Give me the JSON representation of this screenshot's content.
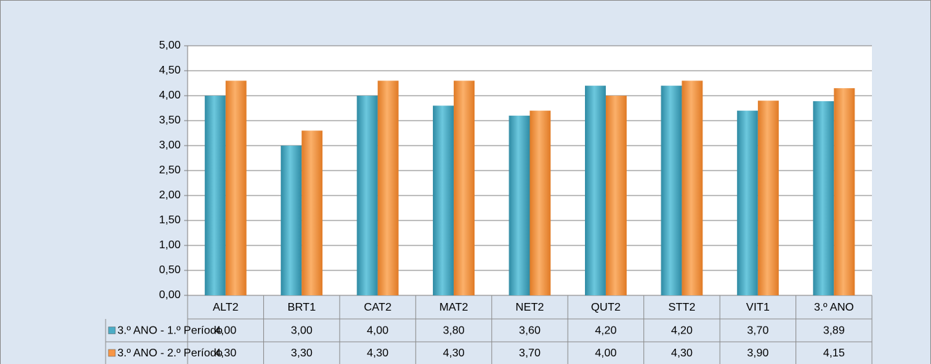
{
  "chart_data": {
    "type": "bar",
    "categories": [
      "ALT2",
      "BRT1",
      "CAT2",
      "MAT2",
      "NET2",
      "QUT2",
      "STT2",
      "VIT1",
      "3.º ANO"
    ],
    "series": [
      {
        "name": "3.º ANO - 1.º Período",
        "color": "#4bacc6",
        "values": [
          4.0,
          3.0,
          4.0,
          3.8,
          3.6,
          4.2,
          4.2,
          3.7,
          3.89
        ],
        "value_labels": [
          "4,00",
          "3,00",
          "4,00",
          "3,80",
          "3,60",
          "4,20",
          "4,20",
          "3,70",
          "3,89"
        ]
      },
      {
        "name": "3.º ANO - 2.º Período",
        "color": "#f79646",
        "values": [
          4.3,
          3.3,
          4.3,
          4.3,
          3.7,
          4.0,
          4.3,
          3.9,
          4.15
        ],
        "value_labels": [
          "4,30",
          "3,30",
          "4,30",
          "4,30",
          "3,70",
          "4,00",
          "4,30",
          "3,90",
          "4,15"
        ]
      }
    ],
    "ylim": [
      0,
      5
    ],
    "yticks": [
      {
        "value": 0,
        "label": "0,00"
      },
      {
        "value": 0.5,
        "label": "0,50"
      },
      {
        "value": 1,
        "label": "1,00"
      },
      {
        "value": 1.5,
        "label": "1,50"
      },
      {
        "value": 2,
        "label": "2,00"
      },
      {
        "value": 2.5,
        "label": "2,50"
      },
      {
        "value": 3,
        "label": "3,00"
      },
      {
        "value": 3.5,
        "label": "3,50"
      },
      {
        "value": 4,
        "label": "4,00"
      },
      {
        "value": 4.5,
        "label": "4,50"
      },
      {
        "value": 5,
        "label": "5,00"
      }
    ],
    "grid": true
  }
}
